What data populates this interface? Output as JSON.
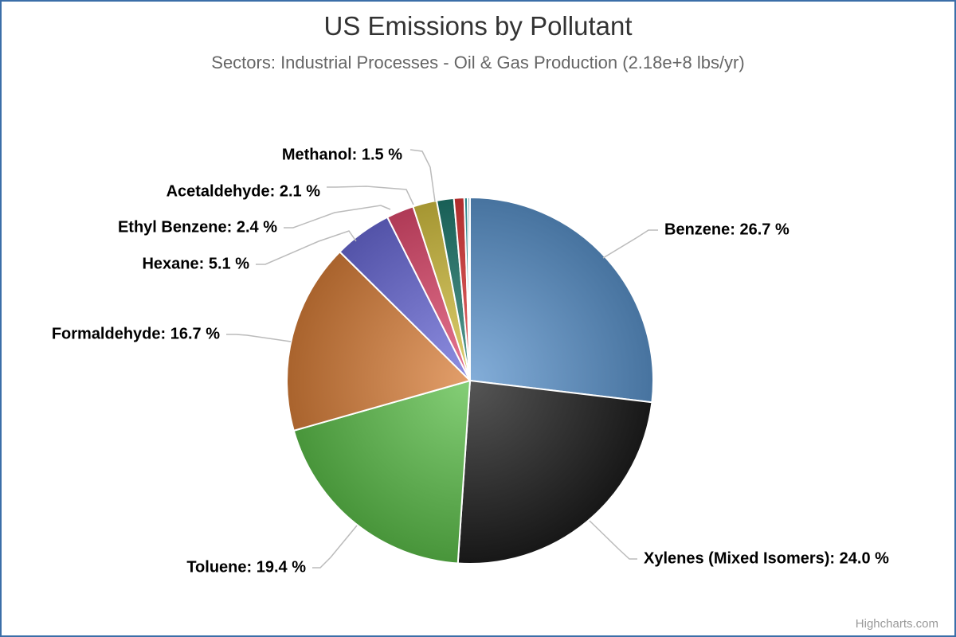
{
  "title": "US Emissions by Pollutant",
  "subtitle": "Sectors: Industrial Processes - Oil & Gas Production (2.18e+8 lbs/yr)",
  "credits": "Highcharts.com",
  "chart_data": {
    "type": "pie",
    "title": "US Emissions by Pollutant",
    "subtitle": "Sectors: Industrial Processes - Oil & Gas Production (2.18e+8 lbs/yr)",
    "unit": "%",
    "slices": [
      {
        "name": "Benzene",
        "value": 26.7,
        "label": "Benzene: 26.7 %",
        "color": "#5b93cc"
      },
      {
        "name": "Xylenes (Mixed Isomers)",
        "value": 24.0,
        "label": "Xylenes (Mixed Isomers): 24.0 %",
        "color": "#1e1e1e"
      },
      {
        "name": "Toluene",
        "value": 19.4,
        "label": "Toluene: 19.4 %",
        "color": "#5cbf4a"
      },
      {
        "name": "Formaldehyde",
        "value": 16.7,
        "label": "Formaldehyde: 16.7 %",
        "color": "#d97f3a"
      },
      {
        "name": "Hexane",
        "value": 5.1,
        "label": "Hexane: 5.1 %",
        "color": "#6a6ad8"
      },
      {
        "name": "Ethyl Benzene",
        "value": 2.4,
        "label": "Ethyl Benzene: 2.4 %",
        "color": "#e04a6e"
      },
      {
        "name": "Acetaldehyde",
        "value": 2.1,
        "label": "Acetaldehyde: 2.1 %",
        "color": "#d4c040"
      },
      {
        "name": "Methanol",
        "value": 1.5,
        "label": "Methanol: 1.5 %",
        "color": "#1f7a6e"
      },
      {
        "name": "",
        "value": 0.9,
        "label": "",
        "color": "#e03a3a"
      },
      {
        "name": "",
        "value": 0.3,
        "label": "",
        "color": "#3aaab0"
      },
      {
        "name": "",
        "value": 0.2,
        "label": "",
        "color": "#9ad0e0"
      }
    ]
  }
}
